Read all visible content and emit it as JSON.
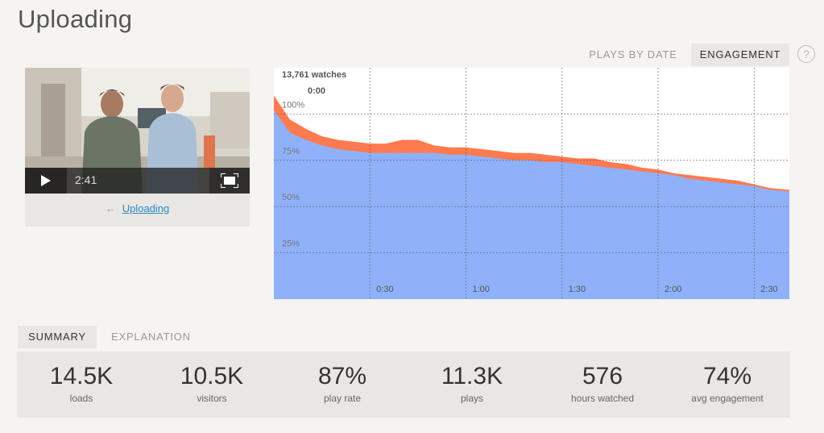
{
  "page": {
    "title": "Uploading"
  },
  "tabs": {
    "plays_by_date": "PLAYS BY DATE",
    "engagement": "ENGAGEMENT",
    "help": "?"
  },
  "video": {
    "time": "2:41",
    "back_arrow": "←",
    "back_link": "Uploading"
  },
  "chart_data": {
    "type": "area",
    "watch_count": "13,761 watches",
    "hover_time": "0:00",
    "y_ticks": [
      "100%",
      "75%",
      "50%",
      "25%"
    ],
    "x_ticks": [
      "0:30",
      "1:00",
      "1:30",
      "2:00",
      "2:30"
    ],
    "ylim": [
      0,
      125
    ],
    "xlim": [
      0,
      161
    ],
    "grid": true,
    "series": [
      {
        "color": "#ff7a4f",
        "x": [
          0,
          5,
          10,
          15,
          20,
          25,
          30,
          35,
          40,
          45,
          50,
          55,
          60,
          65,
          70,
          75,
          80,
          85,
          90,
          95,
          100,
          105,
          110,
          115,
          120,
          125,
          130,
          135,
          140,
          145,
          150,
          155,
          161
        ],
        "values": [
          110,
          97,
          92,
          88,
          86,
          85,
          84,
          84,
          86,
          86,
          83,
          82,
          82,
          81,
          80,
          79,
          79,
          78,
          77,
          76,
          76,
          74,
          73,
          71,
          70,
          68,
          67,
          66,
          65,
          64,
          62,
          60,
          59
        ]
      },
      {
        "color": "#8fb1fa",
        "x": [
          0,
          5,
          10,
          15,
          20,
          25,
          30,
          35,
          40,
          45,
          50,
          55,
          60,
          65,
          70,
          75,
          80,
          85,
          90,
          95,
          100,
          105,
          110,
          115,
          120,
          125,
          130,
          135,
          140,
          145,
          150,
          155,
          161
        ],
        "values": [
          102,
          90,
          86,
          83,
          81,
          80,
          79,
          79,
          79,
          79,
          79,
          78,
          78,
          77,
          76,
          75,
          75,
          74,
          74,
          73,
          72,
          71,
          70,
          69,
          68,
          67,
          65,
          64,
          63,
          62,
          61,
          59,
          58
        ]
      }
    ]
  },
  "summary_tabs": {
    "summary": "SUMMARY",
    "explanation": "EXPLANATION"
  },
  "stats": [
    {
      "value": "14.5K",
      "label": "loads"
    },
    {
      "value": "10.5K",
      "label": "visitors"
    },
    {
      "value": "87%",
      "label": "play rate"
    },
    {
      "value": "11.3K",
      "label": "plays"
    },
    {
      "value": "576",
      "label": "hours watched"
    },
    {
      "value": "74%",
      "label": "avg engagement"
    }
  ]
}
